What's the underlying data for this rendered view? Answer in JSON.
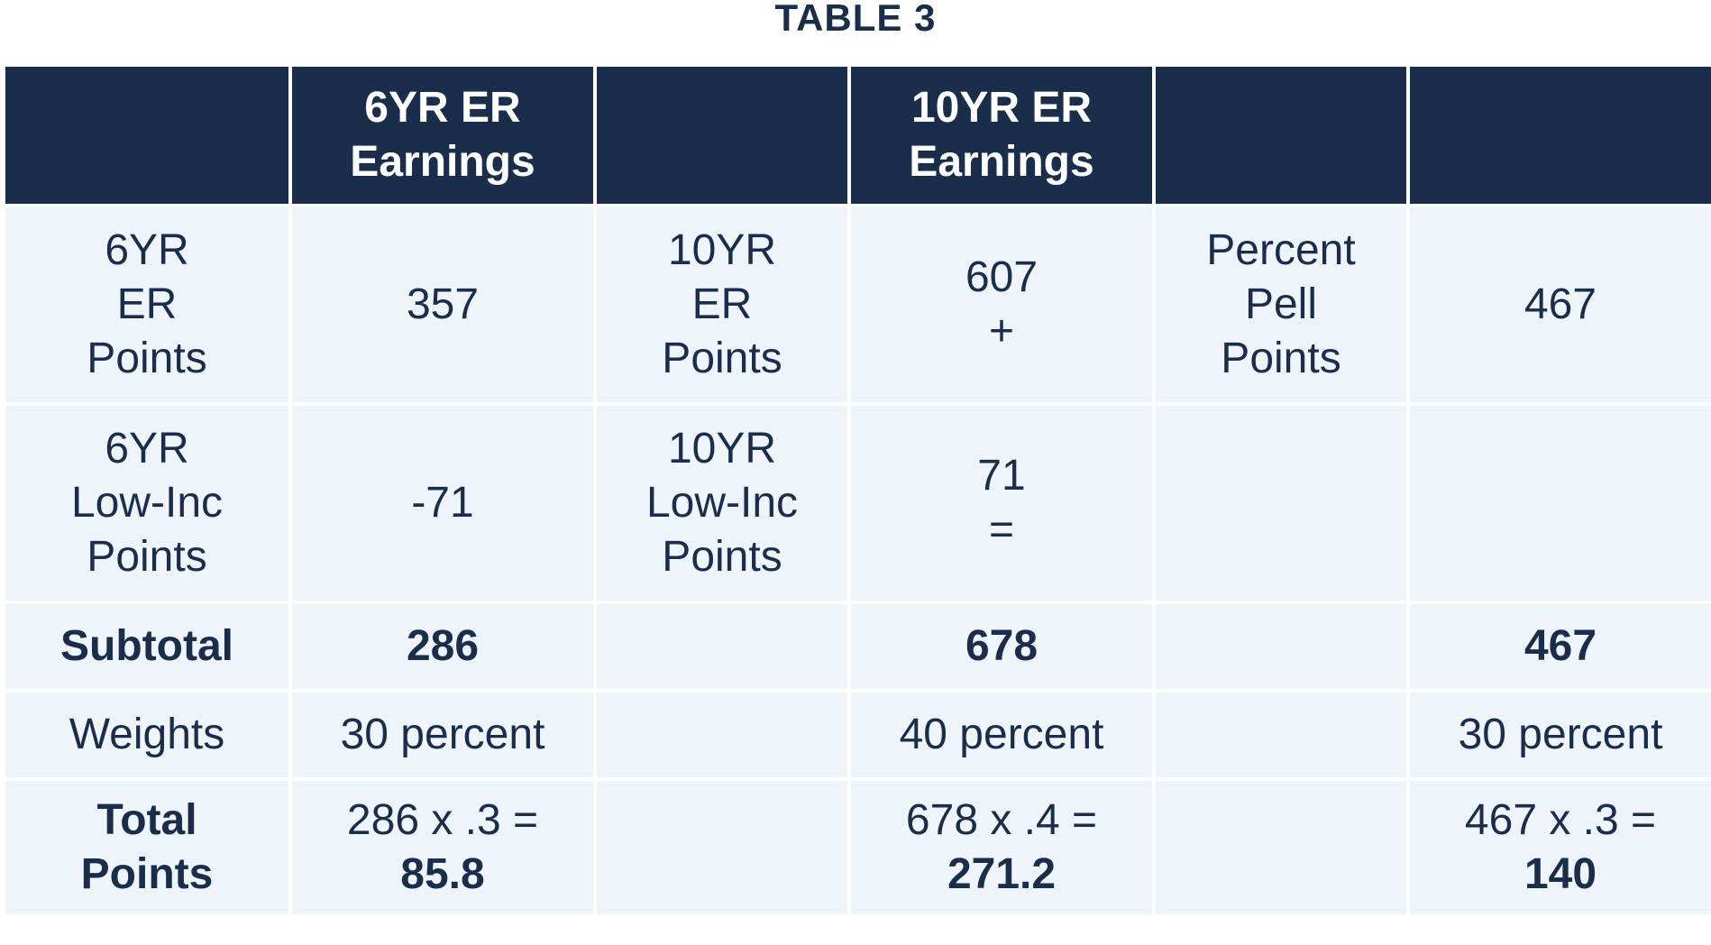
{
  "title": "TABLE 3",
  "header": {
    "col1_line1": "6YR ER",
    "col1_line2": "Earnings",
    "col3_line1": "10YR ER",
    "col3_line2": "Earnings"
  },
  "rows": {
    "er_points": {
      "label_line1": "6YR",
      "label_line2": "ER",
      "label_line3": "Points",
      "six_value": "357",
      "ten_label_line1": "10YR",
      "ten_label_line2": "ER",
      "ten_label_line3": "Points",
      "ten_value": "607",
      "ten_operator": "+",
      "pell_label_line1": "Percent",
      "pell_label_line2": "Pell",
      "pell_label_line3": "Points",
      "pell_value": "467"
    },
    "low_inc": {
      "label_line1": "6YR",
      "label_line2": "Low-Inc",
      "label_line3": "Points",
      "six_value": "-71",
      "ten_label_line1": "10YR",
      "ten_label_line2": "Low-Inc",
      "ten_label_line3": "Points",
      "ten_value": "71",
      "ten_operator": "="
    },
    "subtotal": {
      "label": "Subtotal",
      "six_value": "286",
      "ten_value": "678",
      "pell_value": "467"
    },
    "weights": {
      "label": "Weights",
      "six_value": "30 percent",
      "ten_value": "40 percent",
      "pell_value": "30 percent"
    },
    "total": {
      "label_line1": "Total",
      "label_line2": "Points",
      "six_formula": "286 x .3 =",
      "six_result": "85.8",
      "ten_formula": "678 x .4 =",
      "ten_result": "271.2",
      "pell_formula": "467 x .3 =",
      "pell_result": "140"
    }
  }
}
